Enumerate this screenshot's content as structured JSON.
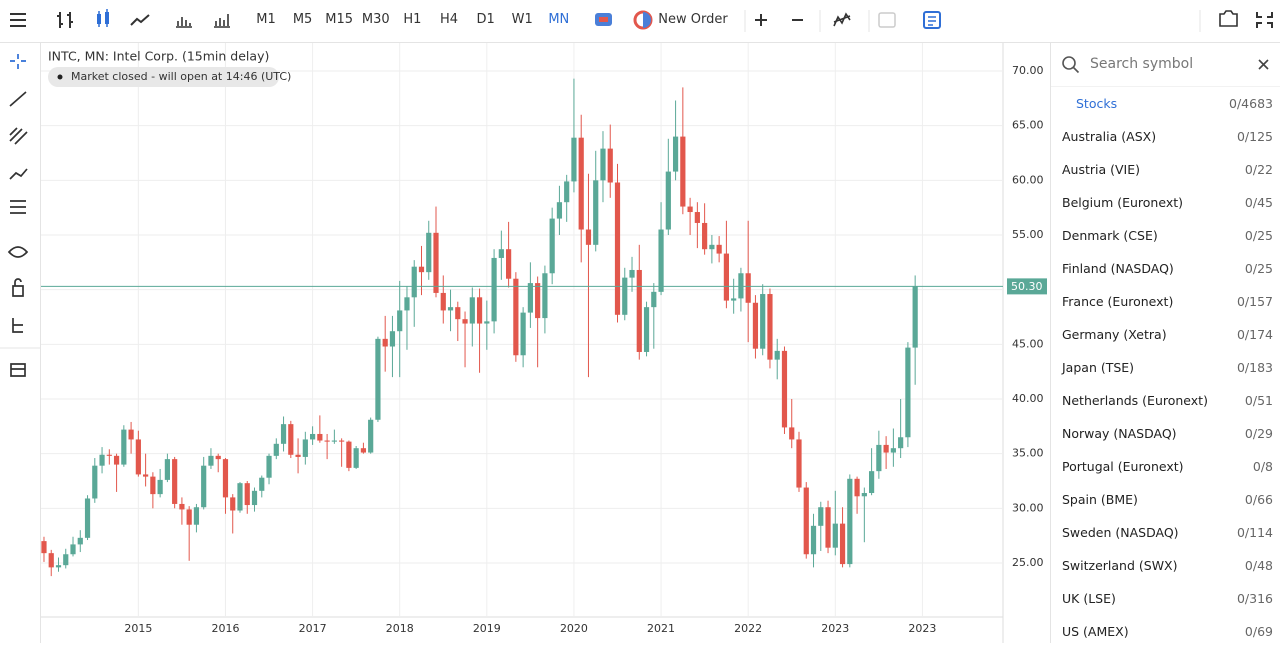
{
  "toolbar": {
    "timeframes": [
      "M1",
      "M5",
      "M15",
      "M30",
      "H1",
      "H4",
      "D1",
      "W1",
      "MN"
    ],
    "active_timeframe_index": 8,
    "new_order": "New Order"
  },
  "chart_data": {
    "type": "candlestick",
    "title": "INTC, MN: Intel Corp. (15min delay)",
    "status": "Market closed - will open at 14:46 (UTC)",
    "up_color": "#5aa897",
    "down_color": "#e2574c",
    "grid": true,
    "ylim": [
      20.06,
      72.56
    ],
    "yticks": [
      {
        "value": 25,
        "label": "25.00"
      },
      {
        "value": 30,
        "label": "30.00"
      },
      {
        "value": 35,
        "label": "35.00"
      },
      {
        "value": 40,
        "label": "40.00"
      },
      {
        "value": 45,
        "label": "45.00"
      },
      {
        "value": 50,
        "label": "50.00"
      },
      {
        "value": 55,
        "label": "55.00"
      },
      {
        "value": 60,
        "label": "60.00"
      },
      {
        "value": 65,
        "label": "65.00"
      },
      {
        "value": 70,
        "label": "70.00"
      }
    ],
    "xlim": [
      -0.41,
      132.1
    ],
    "xticks": [
      {
        "value": 13,
        "label": "2015"
      },
      {
        "value": 25,
        "label": "2016"
      },
      {
        "value": 37,
        "label": "2017"
      },
      {
        "value": 49,
        "label": "2018"
      },
      {
        "value": 61,
        "label": "2019"
      },
      {
        "value": 73,
        "label": "2020"
      },
      {
        "value": 85,
        "label": "2021"
      },
      {
        "value": 97,
        "label": "2022"
      },
      {
        "value": 109,
        "label": "2023"
      },
      {
        "value": 121,
        "label": "2023"
      }
    ],
    "current_price": {
      "value": 50.3,
      "label": "50.30"
    },
    "candles": [
      [
        27.0,
        27.4,
        25.1,
        25.9
      ],
      [
        25.9,
        26.2,
        23.8,
        24.6
      ],
      [
        24.6,
        25.5,
        24.2,
        24.8
      ],
      [
        24.8,
        26.3,
        24.5,
        25.8
      ],
      [
        25.8,
        27.4,
        25.6,
        26.7
      ],
      [
        26.7,
        28.0,
        26.0,
        27.3
      ],
      [
        27.3,
        31.2,
        27.1,
        30.9
      ],
      [
        30.9,
        34.6,
        30.5,
        33.9
      ],
      [
        33.9,
        35.6,
        33.2,
        34.9
      ],
      [
        34.9,
        35.4,
        34.0,
        34.8
      ],
      [
        34.8,
        35.0,
        31.5,
        34.0
      ],
      [
        34.0,
        37.6,
        33.8,
        37.2
      ],
      [
        37.2,
        37.9,
        35.0,
        36.3
      ],
      [
        36.3,
        37.1,
        32.9,
        33.1
      ],
      [
        33.1,
        35.0,
        32.0,
        32.9
      ],
      [
        32.9,
        33.3,
        30.0,
        31.3
      ],
      [
        31.3,
        33.6,
        31.0,
        32.6
      ],
      [
        32.6,
        35.0,
        32.4,
        34.5
      ],
      [
        34.5,
        34.7,
        30.0,
        30.4
      ],
      [
        30.4,
        31.0,
        28.5,
        29.9
      ],
      [
        29.9,
        30.2,
        25.2,
        28.5
      ],
      [
        28.5,
        30.4,
        27.8,
        30.1
      ],
      [
        30.1,
        34.7,
        29.9,
        33.9
      ],
      [
        33.9,
        35.5,
        33.6,
        34.8
      ],
      [
        34.8,
        35.0,
        33.3,
        34.5
      ],
      [
        34.5,
        34.6,
        29.5,
        31.0
      ],
      [
        31.0,
        31.3,
        27.7,
        29.8
      ],
      [
        29.8,
        32.4,
        29.6,
        32.3
      ],
      [
        32.3,
        32.5,
        29.5,
        30.3
      ],
      [
        30.3,
        31.9,
        29.7,
        31.6
      ],
      [
        31.6,
        33.0,
        31.0,
        32.8
      ],
      [
        32.8,
        35.0,
        32.2,
        34.8
      ],
      [
        34.8,
        36.4,
        34.5,
        35.9
      ],
      [
        35.9,
        38.4,
        35.2,
        37.7
      ],
      [
        37.7,
        38.0,
        34.6,
        34.9
      ],
      [
        34.9,
        36.4,
        33.2,
        34.7
      ],
      [
        34.7,
        37.0,
        34.0,
        36.3
      ],
      [
        36.3,
        37.5,
        35.8,
        36.8
      ],
      [
        36.8,
        38.5,
        36.0,
        36.2
      ],
      [
        36.2,
        36.8,
        34.5,
        36.1
      ],
      [
        36.1,
        37.2,
        35.9,
        36.2
      ],
      [
        36.2,
        36.4,
        33.8,
        36.1
      ],
      [
        36.1,
        36.2,
        33.4,
        33.7
      ],
      [
        33.7,
        35.7,
        33.6,
        35.5
      ],
      [
        35.5,
        36.0,
        35.0,
        35.1
      ],
      [
        35.1,
        38.3,
        35.0,
        38.1
      ],
      [
        38.1,
        45.7,
        37.9,
        45.5
      ],
      [
        45.5,
        47.6,
        42.5,
        44.8
      ],
      [
        44.8,
        47.6,
        42.0,
        46.2
      ],
      [
        46.2,
        50.8,
        42.0,
        48.1
      ],
      [
        48.1,
        50.3,
        44.5,
        49.3
      ],
      [
        49.3,
        52.7,
        46.6,
        52.1
      ],
      [
        52.1,
        54.0,
        49.5,
        51.6
      ],
      [
        51.6,
        56.3,
        50.9,
        55.2
      ],
      [
        55.2,
        57.6,
        49.3,
        49.7
      ],
      [
        49.7,
        51.3,
        46.9,
        48.1
      ],
      [
        48.1,
        50.0,
        46.2,
        48.4
      ],
      [
        48.4,
        48.9,
        45.3,
        47.3
      ],
      [
        47.3,
        48.0,
        42.9,
        46.9
      ],
      [
        46.9,
        50.2,
        44.8,
        49.3
      ],
      [
        49.3,
        50.1,
        42.4,
        46.9
      ],
      [
        46.9,
        49.0,
        44.5,
        47.1
      ],
      [
        47.1,
        53.7,
        46.0,
        52.9
      ],
      [
        52.9,
        55.4,
        50.9,
        53.7
      ],
      [
        53.7,
        56.2,
        50.2,
        51.0
      ],
      [
        51.0,
        51.6,
        43.4,
        44.0
      ],
      [
        44.0,
        48.4,
        42.9,
        47.9
      ],
      [
        47.9,
        52.5,
        46.5,
        50.6
      ],
      [
        50.6,
        51.2,
        42.9,
        47.4
      ],
      [
        47.4,
        52.2,
        46.0,
        51.5
      ],
      [
        51.5,
        57.5,
        50.5,
        56.5
      ],
      [
        56.5,
        59.5,
        55.0,
        58.0
      ],
      [
        58.0,
        60.5,
        56.2,
        59.9
      ],
      [
        59.9,
        69.3,
        58.9,
        63.9
      ],
      [
        63.9,
        66.0,
        52.5,
        55.5
      ],
      [
        55.5,
        60.6,
        42.0,
        54.1
      ],
      [
        54.1,
        62.7,
        53.5,
        60.0
      ],
      [
        60.0,
        64.5,
        58.0,
        62.9
      ],
      [
        62.9,
        65.1,
        58.4,
        59.8
      ],
      [
        59.8,
        61.5,
        47.0,
        47.7
      ],
      [
        47.7,
        52.0,
        47.2,
        51.1
      ],
      [
        51.1,
        53.0,
        49.8,
        51.8
      ],
      [
        51.8,
        54.1,
        43.6,
        44.3
      ],
      [
        44.3,
        48.9,
        43.9,
        48.4
      ],
      [
        48.4,
        50.6,
        44.6,
        49.8
      ],
      [
        49.8,
        58.0,
        49.5,
        55.5
      ],
      [
        55.5,
        63.8,
        55.0,
        60.8
      ],
      [
        60.8,
        67.3,
        60.0,
        64.0
      ],
      [
        64.0,
        68.5,
        56.9,
        57.6
      ],
      [
        57.6,
        58.4,
        55.0,
        57.1
      ],
      [
        57.1,
        58.0,
        53.8,
        56.1
      ],
      [
        56.1,
        57.9,
        53.2,
        53.7
      ],
      [
        53.7,
        55.0,
        52.4,
        54.1
      ],
      [
        54.1,
        54.9,
        52.5,
        53.3
      ],
      [
        53.3,
        56.3,
        48.3,
        49.0
      ],
      [
        49.0,
        51.0,
        47.8,
        49.2
      ],
      [
        49.2,
        52.0,
        48.0,
        51.5
      ],
      [
        51.5,
        56.3,
        45.2,
        48.8
      ],
      [
        48.8,
        49.5,
        43.7,
        44.6
      ],
      [
        44.6,
        50.5,
        44.0,
        49.6
      ],
      [
        49.6,
        50.1,
        42.8,
        43.6
      ],
      [
        43.6,
        45.5,
        41.8,
        44.4
      ],
      [
        44.4,
        44.8,
        36.8,
        37.4
      ],
      [
        37.4,
        40.0,
        35.5,
        36.3
      ],
      [
        36.3,
        37.0,
        31.5,
        31.9
      ],
      [
        31.9,
        32.4,
        25.4,
        25.8
      ],
      [
        25.8,
        29.5,
        24.6,
        28.4
      ],
      [
        28.4,
        30.6,
        26.1,
        30.1
      ],
      [
        30.1,
        30.7,
        25.9,
        26.4
      ],
      [
        26.4,
        31.6,
        25.7,
        28.6
      ],
      [
        28.6,
        30.1,
        24.6,
        24.9
      ],
      [
        24.9,
        33.1,
        24.6,
        32.7
      ],
      [
        32.7,
        32.9,
        29.5,
        31.1
      ],
      [
        31.1,
        31.9,
        26.9,
        31.4
      ],
      [
        31.4,
        35.5,
        31.2,
        33.4
      ],
      [
        33.4,
        37.1,
        32.7,
        35.8
      ],
      [
        35.8,
        36.6,
        33.6,
        35.1
      ],
      [
        35.1,
        37.3,
        33.8,
        35.5
      ],
      [
        35.5,
        40.0,
        34.6,
        36.5
      ],
      [
        36.5,
        45.2,
        35.6,
        44.7
      ],
      [
        44.7,
        51.3,
        41.3,
        50.3
      ]
    ]
  },
  "symbol_panel": {
    "search_placeholder": "Search symbol",
    "group": "Stocks",
    "group_count": "0/4683",
    "items": [
      {
        "name": "Australia (ASX)",
        "count": "0/125"
      },
      {
        "name": "Austria (VIE)",
        "count": "0/22"
      },
      {
        "name": "Belgium (Euronext)",
        "count": "0/45"
      },
      {
        "name": "Denmark (CSE)",
        "count": "0/25"
      },
      {
        "name": "Finland (NASDAQ)",
        "count": "0/25"
      },
      {
        "name": "France (Euronext)",
        "count": "0/157"
      },
      {
        "name": "Germany (Xetra)",
        "count": "0/174"
      },
      {
        "name": "Japan (TSE)",
        "count": "0/183"
      },
      {
        "name": "Netherlands (Euronext)",
        "count": "0/51"
      },
      {
        "name": "Norway (NASDAQ)",
        "count": "0/29"
      },
      {
        "name": "Portugal (Euronext)",
        "count": "0/8"
      },
      {
        "name": "Spain (BME)",
        "count": "0/66"
      },
      {
        "name": "Sweden (NASDAQ)",
        "count": "0/114"
      },
      {
        "name": "Switzerland (SWX)",
        "count": "0/48"
      },
      {
        "name": "UK (LSE)",
        "count": "0/316"
      },
      {
        "name": "US (AMEX)",
        "count": "0/69"
      }
    ]
  }
}
